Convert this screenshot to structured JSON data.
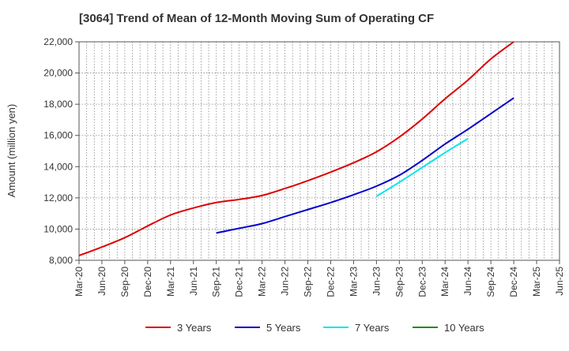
{
  "chart_data": {
    "type": "line",
    "title": "[3064]  Trend of Mean of 12-Month Moving Sum of Operating CF",
    "xlabel": "",
    "ylabel": "Amount (million yen)",
    "ylim": [
      8000,
      22000
    ],
    "yticks": [
      8000,
      10000,
      12000,
      14000,
      16000,
      18000,
      20000,
      22000
    ],
    "ytick_labels": [
      "8,000",
      "10,000",
      "12,000",
      "14,000",
      "16,000",
      "18,000",
      "20,000",
      "22,000"
    ],
    "x_categories": [
      "Mar-20",
      "Jun-20",
      "Sep-20",
      "Dec-20",
      "Mar-21",
      "Jun-21",
      "Sep-21",
      "Dec-21",
      "Mar-22",
      "Jun-22",
      "Sep-22",
      "Dec-22",
      "Mar-23",
      "Jun-23",
      "Sep-23",
      "Dec-23",
      "Mar-24",
      "Jun-24",
      "Sep-24",
      "Dec-24",
      "Mar-25",
      "Jun-25"
    ],
    "grid": true,
    "legend_position": "bottom",
    "series": [
      {
        "name": "3 Years",
        "color": "#dd0000",
        "start_index": 0,
        "values": [
          8300,
          8850,
          9450,
          10200,
          10900,
          11350,
          11700,
          11900,
          12150,
          12600,
          13100,
          13650,
          14250,
          14950,
          15900,
          17050,
          18350,
          19550,
          20900,
          22000
        ]
      },
      {
        "name": "5 Years",
        "color": "#0000cc",
        "start_index": 6,
        "values": [
          9750,
          10050,
          10350,
          10800,
          11250,
          11700,
          12200,
          12750,
          13450,
          14400,
          15450,
          16400,
          17400,
          18400
        ]
      },
      {
        "name": "7 Years",
        "color": "#00e5ee",
        "start_index": 13,
        "values": [
          12100,
          13000,
          13950,
          14900,
          15800
        ]
      },
      {
        "name": "10 Years",
        "color": "#228b22",
        "start_index": 20,
        "values": []
      }
    ]
  }
}
